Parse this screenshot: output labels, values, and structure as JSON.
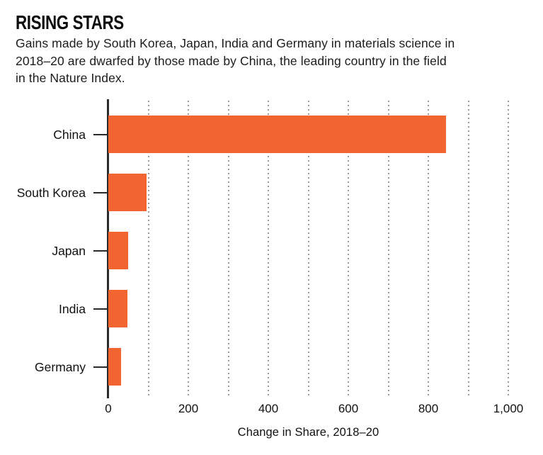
{
  "header": {
    "title": "RISING STARS",
    "subtitle": "Gains made by South Korea, Japan, India and Germany in materials science in 2018–20 are dwarfed by those made by China, the leading country in the field in the Nature Index.",
    "subtitle_lines": [
      "Gains made by South Korea, Japan, India and Germany in materials science in",
      "2018–20 are dwarfed by those made by China, the leading country in the field",
      "in the Nature Index."
    ]
  },
  "chart_data": {
    "type": "bar",
    "orientation": "horizontal",
    "title": "RISING STARS",
    "categories": [
      "China",
      "South Korea",
      "Japan",
      "India",
      "Germany"
    ],
    "values": [
      845,
      95,
      49,
      48,
      31
    ],
    "xlabel": "Change in Share, 2018–20",
    "ylabel": "",
    "xlim": [
      0,
      1000
    ],
    "x_major_ticks": [
      0,
      200,
      400,
      600,
      800,
      1000
    ],
    "x_tick_labels": [
      "0",
      "200",
      "400",
      "600",
      "800",
      "1,000"
    ],
    "gridline_interval": 100,
    "grid": "vertical-dotted",
    "legend": "none",
    "colors": {
      "bar": "#F26531",
      "axis": "#2B2B2B",
      "gridline": "#9A9A9A",
      "text": "#111111"
    }
  }
}
